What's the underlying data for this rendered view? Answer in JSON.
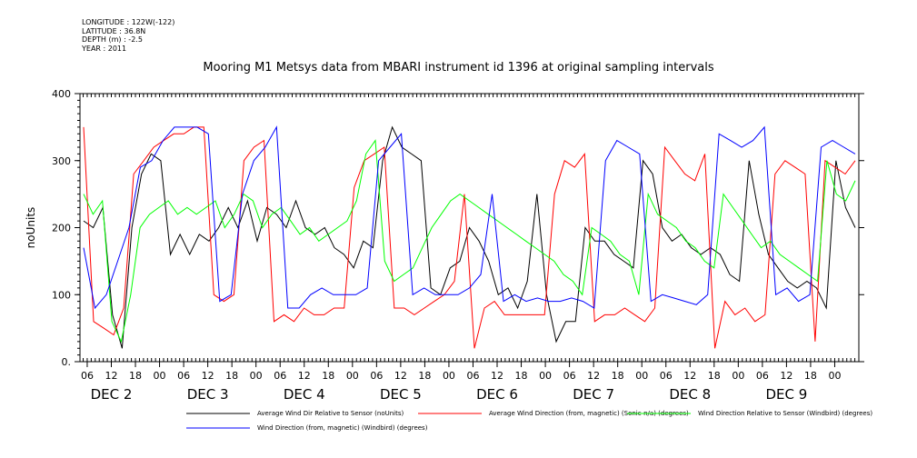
{
  "header": {
    "longitude": "LONGITUDE : 122W(-122)",
    "latitude": "LATITUDE : 36.8N",
    "depth": "DEPTH (m) : -2.5",
    "year": "YEAR : 2011"
  },
  "chart_data": {
    "type": "line",
    "title": "Mooring M1 Metsys data from MBARI instrument id 1396 at original sampling intervals",
    "ylabel": "noUnits",
    "xlabel": "",
    "ylim": [
      0,
      400
    ],
    "yticks": [
      "0.",
      "100",
      "200",
      "300",
      "400"
    ],
    "x_tick_labels": [
      "06",
      "12",
      "18",
      "00",
      "06",
      "12",
      "18",
      "00",
      "06",
      "12",
      "18",
      "00",
      "06",
      "12",
      "18",
      "00",
      "06",
      "12",
      "18",
      "00",
      "06",
      "12",
      "18",
      "00",
      "06",
      "12",
      "18",
      "00",
      "06",
      "12",
      "18",
      "00"
    ],
    "day_labels": [
      "DEC  2",
      "DEC  3",
      "DEC  4",
      "DEC  5",
      "DEC  6",
      "DEC  7",
      "DEC  8",
      "DEC  9"
    ],
    "legend_position": "bottom",
    "series": [
      {
        "name": "Average Wind Dir Relative to Sensor (noUnits)",
        "color": "#000000",
        "values": [
          210,
          200,
          230,
          70,
          20,
          200,
          280,
          310,
          300,
          160,
          190,
          160,
          190,
          180,
          200,
          230,
          200,
          240,
          180,
          230,
          220,
          200,
          240,
          200,
          190,
          200,
          170,
          160,
          140,
          180,
          170,
          300,
          350,
          320,
          310,
          300,
          110,
          100,
          140,
          150,
          200,
          180,
          150,
          100,
          110,
          80,
          120,
          250,
          100,
          30,
          60,
          60,
          200,
          180,
          180,
          160,
          150,
          140,
          300,
          280,
          200,
          180,
          190,
          170,
          160,
          170,
          160,
          130,
          120,
          300,
          220,
          160,
          140,
          120,
          110,
          120,
          110,
          80,
          300,
          230,
          200
        ]
      },
      {
        "name": "Average Wind Direction (from, magnetic) (Sonic-n/a) (degrees)",
        "color": "#ff0000",
        "values": [
          350,
          60,
          50,
          40,
          80,
          280,
          300,
          320,
          330,
          340,
          340,
          350,
          350,
          100,
          90,
          100,
          300,
          320,
          330,
          60,
          70,
          60,
          80,
          70,
          70,
          80,
          80,
          260,
          300,
          310,
          320,
          80,
          80,
          70,
          80,
          90,
          100,
          120,
          250,
          20,
          80,
          90,
          70,
          70,
          70,
          70,
          70,
          250,
          300,
          290,
          310,
          60,
          70,
          70,
          80,
          70,
          60,
          80,
          320,
          300,
          280,
          270,
          310,
          20,
          90,
          70,
          80,
          60,
          70,
          280,
          300,
          290,
          280,
          30,
          300,
          290,
          280,
          300
        ]
      },
      {
        "name": "Wind Direction Relative to Sensor (Windbird) (degrees)",
        "color": "#00ff00",
        "values": [
          250,
          220,
          240,
          60,
          30,
          100,
          200,
          220,
          230,
          240,
          220,
          230,
          220,
          230,
          240,
          200,
          220,
          250,
          240,
          200,
          220,
          230,
          210,
          190,
          200,
          180,
          190,
          200,
          210,
          240,
          310,
          330,
          150,
          120,
          130,
          140,
          170,
          200,
          220,
          240,
          250,
          240,
          230,
          220,
          210,
          200,
          190,
          180,
          170,
          160,
          150,
          130,
          120,
          100,
          200,
          190,
          180,
          160,
          150,
          100,
          250,
          220,
          210,
          200,
          180,
          170,
          150,
          140,
          250,
          230,
          210,
          190,
          170,
          180,
          160,
          150,
          140,
          130,
          120,
          300,
          250,
          240,
          270
        ]
      },
      {
        "name": "Wind Direction (from, magnetic) (Windbird) (degrees)",
        "color": "#0000ff",
        "values": [
          170,
          80,
          100,
          150,
          200,
          290,
          300,
          330,
          350,
          350,
          350,
          340,
          90,
          100,
          250,
          300,
          320,
          350,
          80,
          80,
          100,
          110,
          100,
          100,
          100,
          110,
          300,
          320,
          340,
          100,
          110,
          100,
          100,
          100,
          110,
          130,
          250,
          90,
          100,
          90,
          95,
          90,
          90,
          95,
          90,
          80,
          300,
          330,
          320,
          310,
          90,
          100,
          95,
          90,
          85,
          100,
          340,
          330,
          320,
          330,
          350,
          100,
          110,
          90,
          100,
          320,
          330,
          320,
          310
        ]
      }
    ]
  }
}
